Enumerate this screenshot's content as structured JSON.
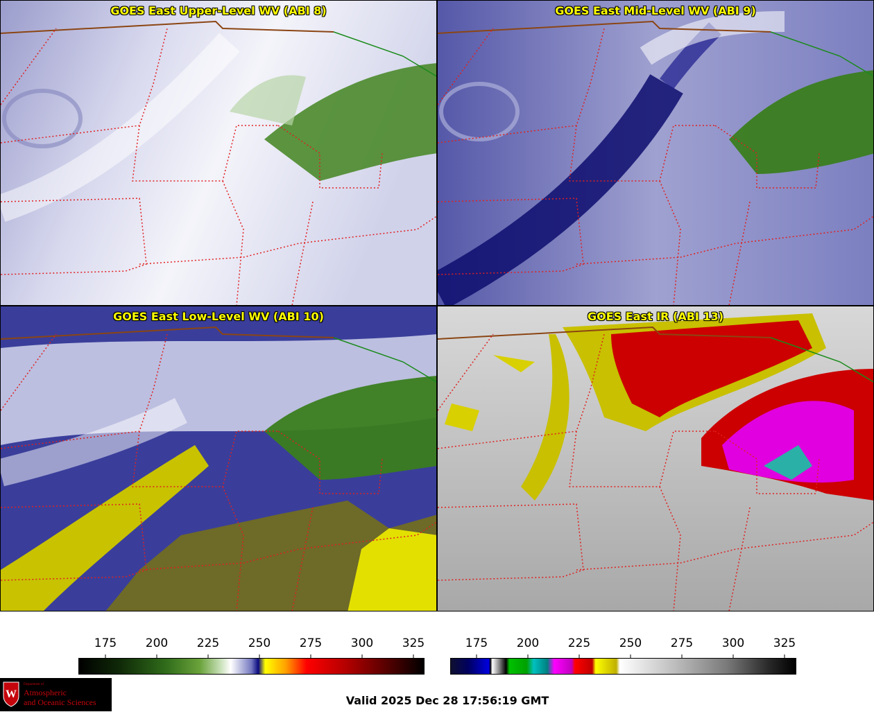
{
  "panels": [
    {
      "title": "GOES East Upper-Level WV (ABI 8)"
    },
    {
      "title": "GOES East Mid-Level WV (ABI 9)"
    },
    {
      "title": "GOES East Low-Level WV (ABI 10)"
    },
    {
      "title": "GOES East IR (ABI 13)"
    }
  ],
  "colorbars": [
    {
      "ticks": [
        "175",
        "200",
        "225",
        "250",
        "275",
        "300",
        "325"
      ]
    },
    {
      "ticks": [
        "175",
        "200",
        "225",
        "250",
        "275",
        "300",
        "325"
      ]
    }
  ],
  "logo": {
    "dept": "Department of",
    "line1": "Atmospheric",
    "line2": "and Oceanic Sciences",
    "icon": "uw-crest-icon"
  },
  "valid_text": "Valid 2025 Dec 28 17:56:19 GMT",
  "colors": {
    "wv_green": "#3a7d1e",
    "wv_blue": "#1a1a8c",
    "wv_yellow": "#e3e000",
    "ir_red": "#d40000",
    "ir_magenta": "#e000e0",
    "ir_teal": "#2bb0a8",
    "border_state": "#e02020",
    "border_country": "#8b4513",
    "border_green": "#1a8a1a"
  }
}
